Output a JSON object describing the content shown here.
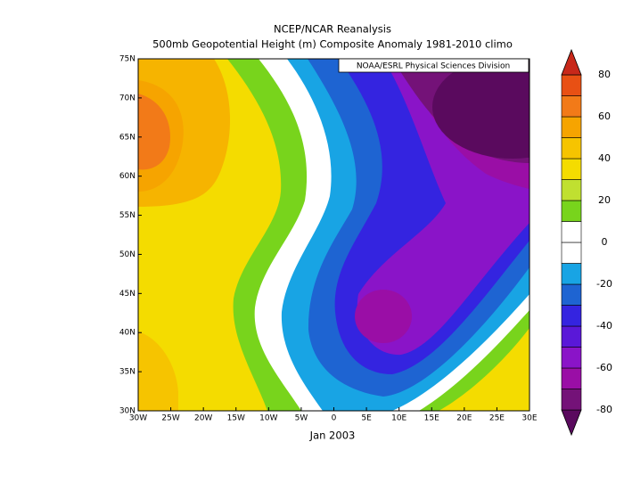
{
  "header": {
    "title": "NCEP/NCAR Reanalysis",
    "subtitle": "500mb Geopotential Height (m) Composite Anomaly 1981-2010 climo"
  },
  "credit": "NOAA/ESRL Physical Sciences Division",
  "date": "Jan 2003",
  "map": {
    "lon_labels": [
      "30W",
      "25W",
      "20W",
      "15W",
      "10W",
      "5W",
      "0",
      "5E",
      "10E",
      "15E",
      "20E",
      "25E",
      "30E"
    ],
    "lat_labels": [
      "30N",
      "35N",
      "40N",
      "45N",
      "50N",
      "55N",
      "60N",
      "65N",
      "70N",
      "75N"
    ]
  },
  "colorbar": {
    "labels": [
      "-80",
      "-60",
      "-40",
      "-20",
      "0",
      "20",
      "40",
      "60",
      "80"
    ],
    "colors": [
      "#5a0a5e",
      "#741278",
      "#9a0ea6",
      "#8a14c8",
      "#5a18d8",
      "#3424e0",
      "#1e64d2",
      "#18a4e4",
      "#ffffff",
      "#ffffff",
      "#78d41c",
      "#c0e030",
      "#f4dc00",
      "#f6c400",
      "#f6a400",
      "#f27a18",
      "#e85014",
      "#c8281a"
    ]
  }
}
